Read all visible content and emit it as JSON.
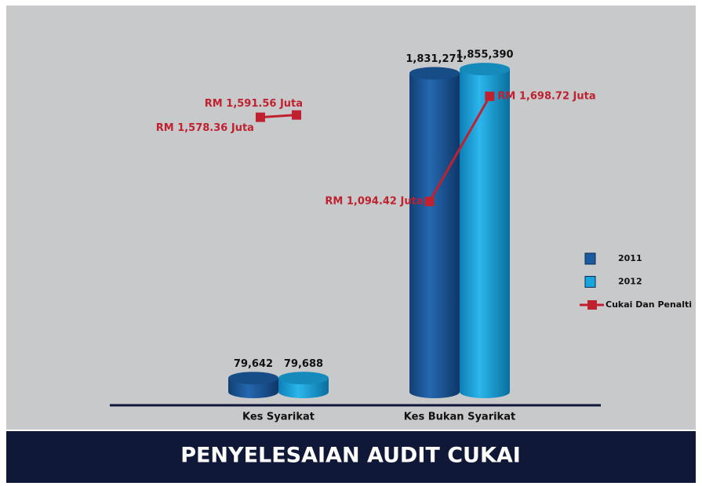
{
  "chart_data": {
    "type": "bar",
    "title": "PENYELESAIAN AUDIT CUKAI",
    "categories": [
      "Kes Syarikat",
      "Kes Bukan Syarikat"
    ],
    "series": [
      {
        "name": "2011",
        "color": "#1b5a9e",
        "values": [
          79642,
          1831271
        ],
        "value_labels": [
          "79,642",
          "1,831,271"
        ]
      },
      {
        "name": "2012",
        "color": "#18a4dc",
        "values": [
          79688,
          1855390
        ],
        "value_labels": [
          "79,688",
          "1,855,390"
        ]
      },
      {
        "name": "Cukai Dan Penalti",
        "type": "line",
        "axis": "y2",
        "color": "#c0212f",
        "values": [
          [
            1578.36,
            1591.56
          ],
          [
            1094.42,
            1698.72
          ]
        ],
        "value_labels": [
          [
            "RM 1,578.36 Juta",
            "RM 1,591.56 Juta"
          ],
          [
            "RM 1,094.42 Juta",
            "RM 1,698.72 Juta"
          ]
        ]
      }
    ],
    "ylim": [
      0,
      2000000
    ],
    "y2lim": [
      0,
      2000
    ],
    "legend": "right"
  }
}
